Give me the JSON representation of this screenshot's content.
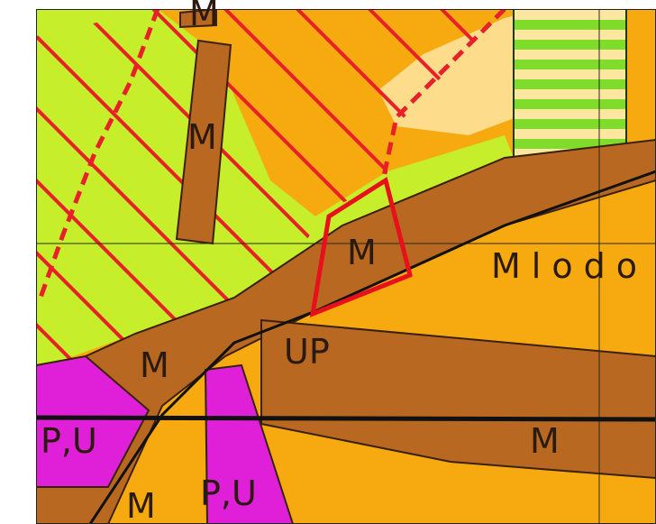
{
  "labels": [
    {
      "text": "M"
    },
    {
      "text": "M"
    },
    {
      "text": "M"
    },
    {
      "text": "Mlodo"
    },
    {
      "text": "M"
    },
    {
      "text": "UP"
    },
    {
      "text": "P,U"
    },
    {
      "text": "P,U"
    },
    {
      "text": "M"
    },
    {
      "text": "M"
    }
  ]
}
